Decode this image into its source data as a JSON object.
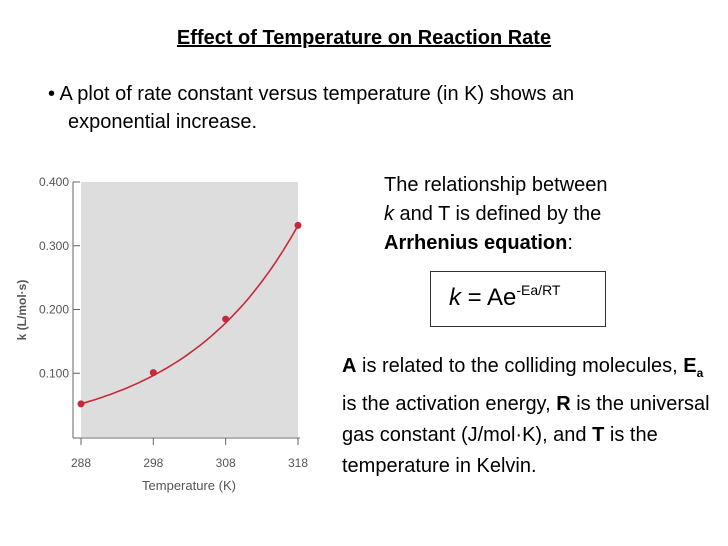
{
  "slide": {
    "title": "Effect of Temperature on Reaction Rate",
    "bullet_marker": "•",
    "bullet_line1": "A plot of rate constant versus temperature (in K) shows an",
    "bullet_line2": "exponential increase."
  },
  "relationship": {
    "line1": "The relationship between",
    "k": "k",
    "line2_rest": " and T is defined by the",
    "equation_name": "Arrhenius equation",
    "colon": ":"
  },
  "equation": {
    "k": "k",
    "equals_A": " = Ae",
    "exponent": "-Ea/RT"
  },
  "description": {
    "A": "A",
    "t1": " is related to the colliding molecules, ",
    "E": "E",
    "a": "a",
    "t2": " is the activation energy, ",
    "R": "R",
    "t3": " is the universal gas constant (J/mol·K), and ",
    "T": "T",
    "t4": " is the temperature in Kelvin."
  },
  "chart_data": {
    "type": "line",
    "title": "",
    "xlabel": "Temperature (K)",
    "ylabel": "k (L/mol·s)",
    "x": [
      288,
      298,
      308,
      318
    ],
    "series": [
      {
        "name": "k",
        "values": [
          0.052,
          0.101,
          0.185,
          0.332
        ]
      }
    ],
    "xlim": [
      288,
      318
    ],
    "ylim": [
      0,
      0.4
    ],
    "xticks": [
      "288",
      "298",
      "308",
      "318"
    ],
    "yticks": [
      "0.100",
      "0.200",
      "0.300",
      "0.400"
    ],
    "ytick_values": [
      0.1,
      0.2,
      0.3,
      0.4
    ],
    "line_color": "#c8283c",
    "plot_bg": "#dddddd",
    "grid": false
  }
}
